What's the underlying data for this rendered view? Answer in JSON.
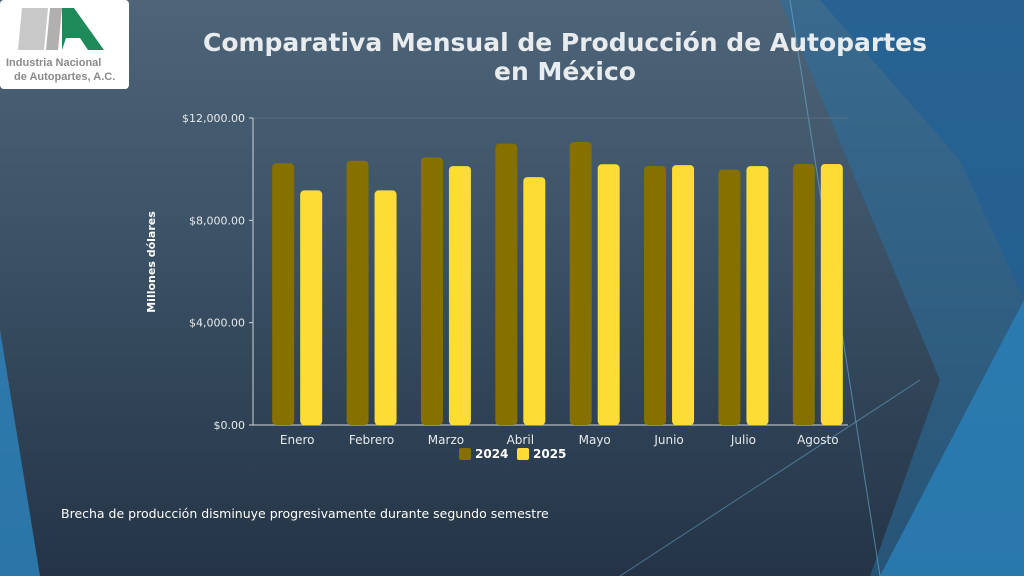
{
  "logo": {
    "text": "Industria Nacional de Autopartes, A.C.",
    "line1": "Industria Nacional",
    "line2": "de Autopartes, A.C."
  },
  "title_line1": "Comparativa Mensual de Producción de Autopartes",
  "title_line2": "en México",
  "note": "Brecha de producción disminuye progresivamente durante segundo semestre",
  "chart_data": {
    "type": "bar",
    "title": "Comparativa Mensual de Producción de Autopartes en México",
    "ylabel": "Millones dólares",
    "xlabel": "",
    "ylim": [
      0,
      12000
    ],
    "yticks": [
      0,
      4000,
      8000,
      12000
    ],
    "ytick_labels": [
      "$0.00",
      "$4,000.00",
      "$8,000.00",
      "$12,000.00"
    ],
    "categories": [
      "Enero",
      "Febrero",
      "Marzo",
      "Abril",
      "Mayo",
      "Junio",
      "Julio",
      "Agosto"
    ],
    "series": [
      {
        "name": "2024",
        "color": "#857000",
        "values": [
          10230,
          10330,
          10460,
          11000,
          11060,
          10120,
          9980,
          10200
        ]
      },
      {
        "name": "2025",
        "color": "#fddc35",
        "values": [
          9170,
          9170,
          10120,
          9690,
          10190,
          10160,
          10120,
          10200
        ]
      }
    ],
    "legend": "bottom",
    "grid": false
  }
}
